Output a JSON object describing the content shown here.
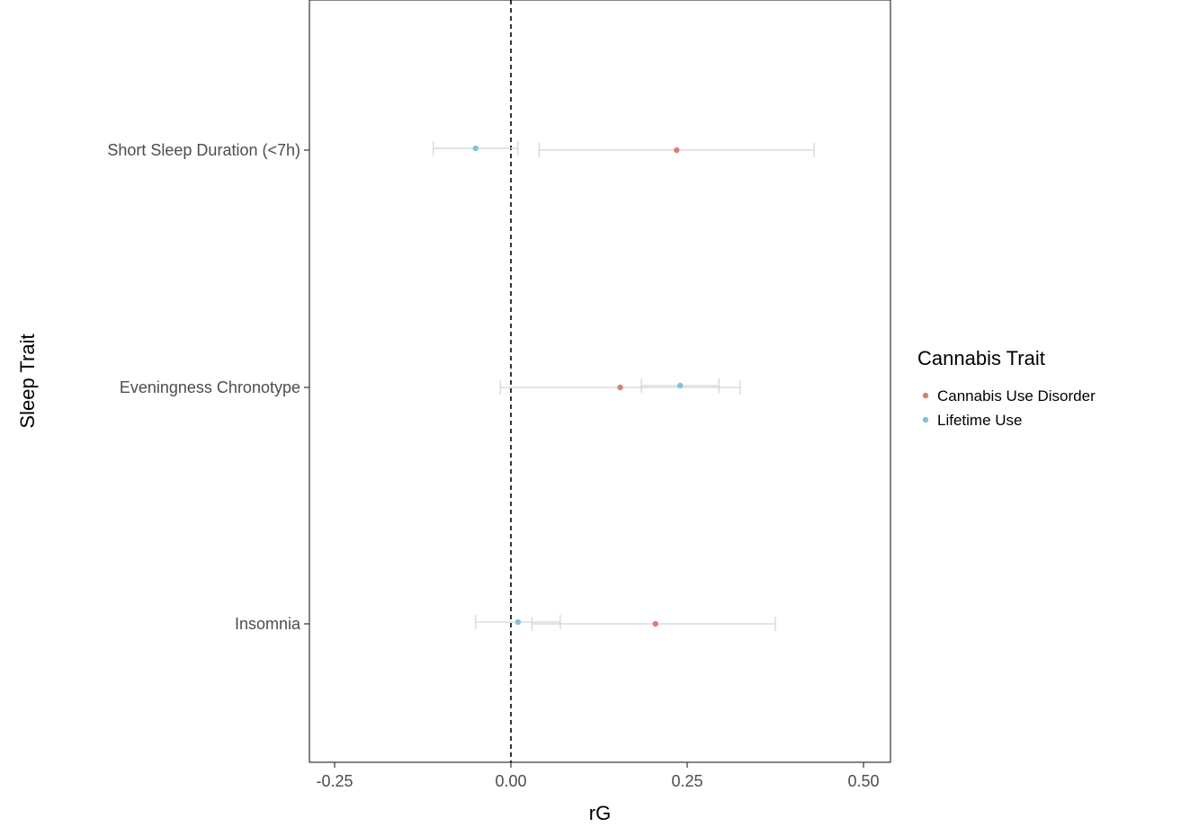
{
  "chart_data": {
    "type": "scatter",
    "subtype": "forest-plot",
    "xlabel": "rG",
    "ylabel": "Sleep Trait",
    "xlim": [
      -0.28,
      0.54
    ],
    "x_ticks": [
      -0.25,
      0.0,
      0.25,
      0.5
    ],
    "x_tick_labels": [
      "-0.25",
      "0.00",
      "0.25",
      "0.50"
    ],
    "reference_line": 0,
    "reference_line_style": "dashed",
    "categories": [
      "Short Sleep Duration (<7h)",
      "Eveningness Chronotype",
      "Insomnia"
    ],
    "grid": false,
    "legend": {
      "title": "Cannabis Trait",
      "placement": "right"
    },
    "series": [
      {
        "name": "Cannabis Use Disorder",
        "color": "#d9826e",
        "points": [
          {
            "category": "Short Sleep Duration (<7h)",
            "x": 0.235,
            "lo": 0.04,
            "hi": 0.43
          },
          {
            "category": "Eveningness Chronotype",
            "x": 0.155,
            "lo": -0.015,
            "hi": 0.325
          },
          {
            "category": "Insomnia",
            "x": 0.205,
            "lo": 0.03,
            "hi": 0.375
          }
        ]
      },
      {
        "name": "Lifetime Use",
        "color": "#7cc4da",
        "points": [
          {
            "category": "Short Sleep Duration (<7h)",
            "x": -0.05,
            "lo": -0.11,
            "hi": 0.01
          },
          {
            "category": "Eveningness Chronotype",
            "x": 0.24,
            "lo": 0.185,
            "hi": 0.295
          },
          {
            "category": "Insomnia",
            "x": 0.01,
            "lo": -0.05,
            "hi": 0.07
          }
        ]
      }
    ]
  },
  "colors": {
    "error_bar": "#d3d3d3",
    "panel_border": "#333333",
    "reference_line": "#000000"
  }
}
